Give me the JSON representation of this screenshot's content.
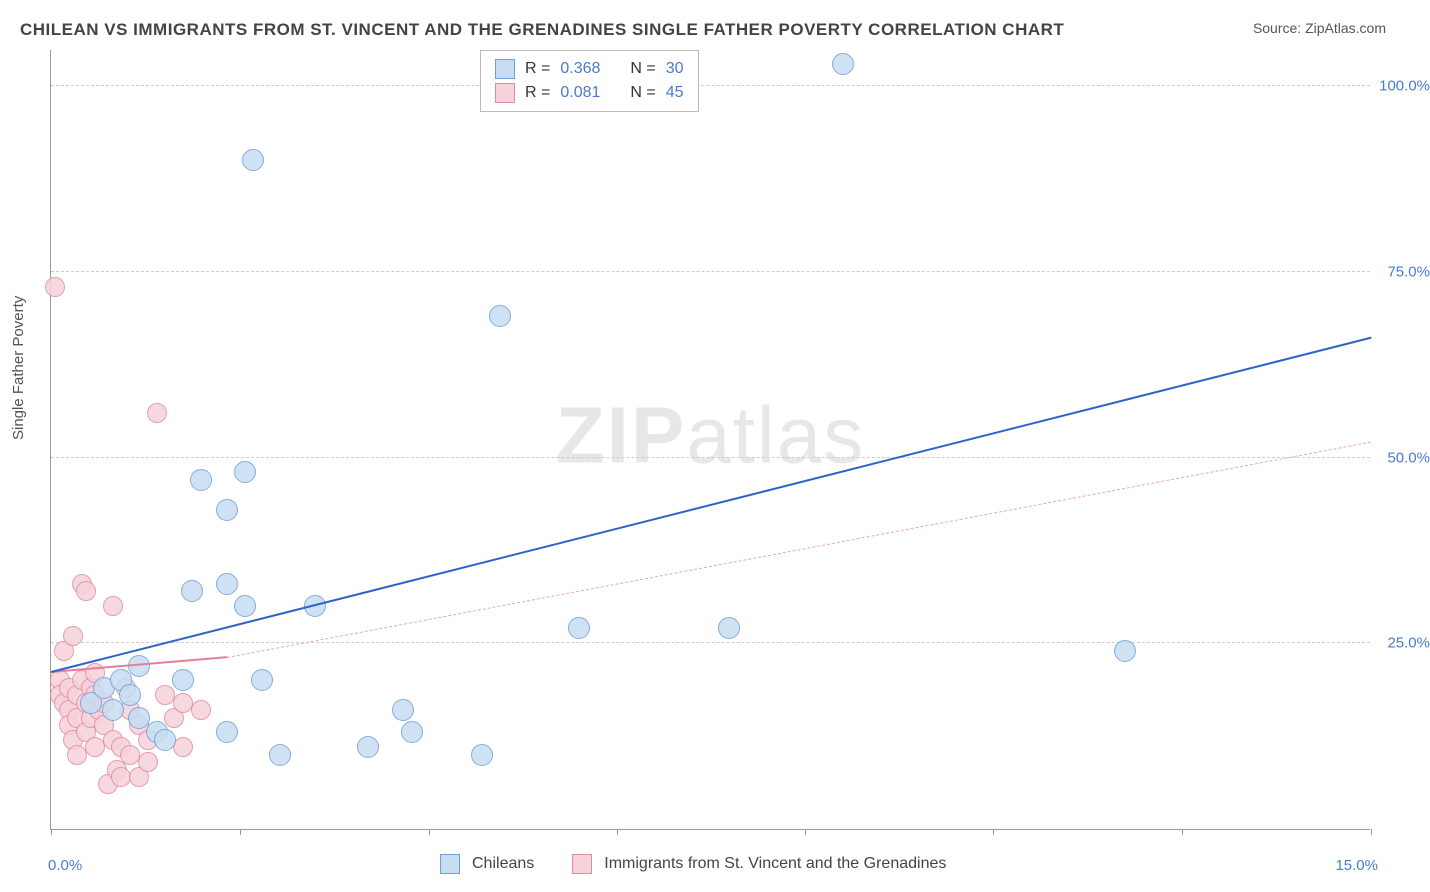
{
  "title": "CHILEAN VS IMMIGRANTS FROM ST. VINCENT AND THE GRENADINES SINGLE FATHER POVERTY CORRELATION CHART",
  "source_label": "Source: ZipAtlas.com",
  "y_axis_label": "Single Father Poverty",
  "watermark_bold": "ZIP",
  "watermark_rest": "atlas",
  "chart": {
    "type": "scatter",
    "xlim": [
      0,
      15
    ],
    "ylim": [
      0,
      105
    ],
    "x_ticks_pct": [
      0,
      14.3,
      28.6,
      42.9,
      57.1,
      71.4,
      85.7,
      100
    ],
    "x_tick_labels": {
      "left": "0.0%",
      "right": "15.0%"
    },
    "y_gridlines": [
      25,
      50,
      75,
      100
    ],
    "y_tick_labels": [
      "25.0%",
      "50.0%",
      "75.0%",
      "100.0%"
    ],
    "background_color": "#ffffff",
    "grid_color": "#cccccc",
    "axis_color": "#999999",
    "label_color": "#4a7bd0",
    "series": {
      "a": {
        "label": "Chileans",
        "fill": "#c7ddf2",
        "stroke": "#6f9fd8",
        "radius": 11,
        "R_label": "R =",
        "R_value": "0.368",
        "N_label": "N =",
        "N_value": "30",
        "trend": {
          "color": "#2e63c9",
          "width": 2.5,
          "dash": "none",
          "x1": 0,
          "y1": 21,
          "x2": 15,
          "y2": 66
        },
        "points": [
          [
            0.45,
            17
          ],
          [
            0.6,
            19
          ],
          [
            0.7,
            16
          ],
          [
            0.8,
            20
          ],
          [
            0.9,
            18
          ],
          [
            1.0,
            15
          ],
          [
            1.0,
            22
          ],
          [
            1.2,
            13
          ],
          [
            1.3,
            12
          ],
          [
            1.5,
            20
          ],
          [
            1.6,
            32
          ],
          [
            1.7,
            47
          ],
          [
            2.0,
            33
          ],
          [
            2.0,
            43
          ],
          [
            2.0,
            13
          ],
          [
            2.2,
            48
          ],
          [
            2.2,
            30
          ],
          [
            2.4,
            20
          ],
          [
            2.3,
            90
          ],
          [
            2.6,
            10
          ],
          [
            3.0,
            30
          ],
          [
            3.6,
            11
          ],
          [
            4.0,
            16
          ],
          [
            4.1,
            13
          ],
          [
            4.9,
            10
          ],
          [
            5.1,
            69
          ],
          [
            6.0,
            27
          ],
          [
            7.7,
            27
          ],
          [
            9.0,
            103
          ],
          [
            12.2,
            24
          ]
        ]
      },
      "b": {
        "label": "Immigrants from St. Vincent and the Grenadines",
        "fill": "#f6d2da",
        "stroke": "#e38ca0",
        "radius": 10,
        "R_label": "R =",
        "R_value": "0.081",
        "N_label": "N =",
        "N_value": "45",
        "trend_solid": {
          "color": "#e57f95",
          "width": 2,
          "dash": "none",
          "x1": 0,
          "y1": 21,
          "x2": 2.0,
          "y2": 23
        },
        "trend_dash": {
          "color": "#e9a8b6",
          "width": 1.5,
          "dash": "6,6",
          "x1": 2.0,
          "y1": 23,
          "x2": 15,
          "y2": 52
        },
        "points": [
          [
            0.05,
            73
          ],
          [
            0.1,
            20
          ],
          [
            0.1,
            18
          ],
          [
            0.15,
            17
          ],
          [
            0.15,
            24
          ],
          [
            0.2,
            19
          ],
          [
            0.2,
            16
          ],
          [
            0.2,
            14
          ],
          [
            0.25,
            12
          ],
          [
            0.25,
            26
          ],
          [
            0.3,
            18
          ],
          [
            0.3,
            15
          ],
          [
            0.3,
            10
          ],
          [
            0.35,
            20
          ],
          [
            0.35,
            33
          ],
          [
            0.4,
            17
          ],
          [
            0.4,
            13
          ],
          [
            0.4,
            32
          ],
          [
            0.45,
            19
          ],
          [
            0.45,
            15
          ],
          [
            0.5,
            18
          ],
          [
            0.5,
            21
          ],
          [
            0.5,
            11
          ],
          [
            0.55,
            16
          ],
          [
            0.6,
            17
          ],
          [
            0.6,
            14
          ],
          [
            0.65,
            6
          ],
          [
            0.7,
            30
          ],
          [
            0.7,
            12
          ],
          [
            0.75,
            8
          ],
          [
            0.8,
            7
          ],
          [
            0.8,
            11
          ],
          [
            0.85,
            19
          ],
          [
            0.9,
            10
          ],
          [
            0.9,
            16
          ],
          [
            1.0,
            7
          ],
          [
            1.0,
            14
          ],
          [
            1.1,
            9
          ],
          [
            1.1,
            12
          ],
          [
            1.2,
            56
          ],
          [
            1.3,
            18
          ],
          [
            1.4,
            15
          ],
          [
            1.5,
            17
          ],
          [
            1.5,
            11
          ],
          [
            1.7,
            16
          ]
        ]
      }
    }
  }
}
